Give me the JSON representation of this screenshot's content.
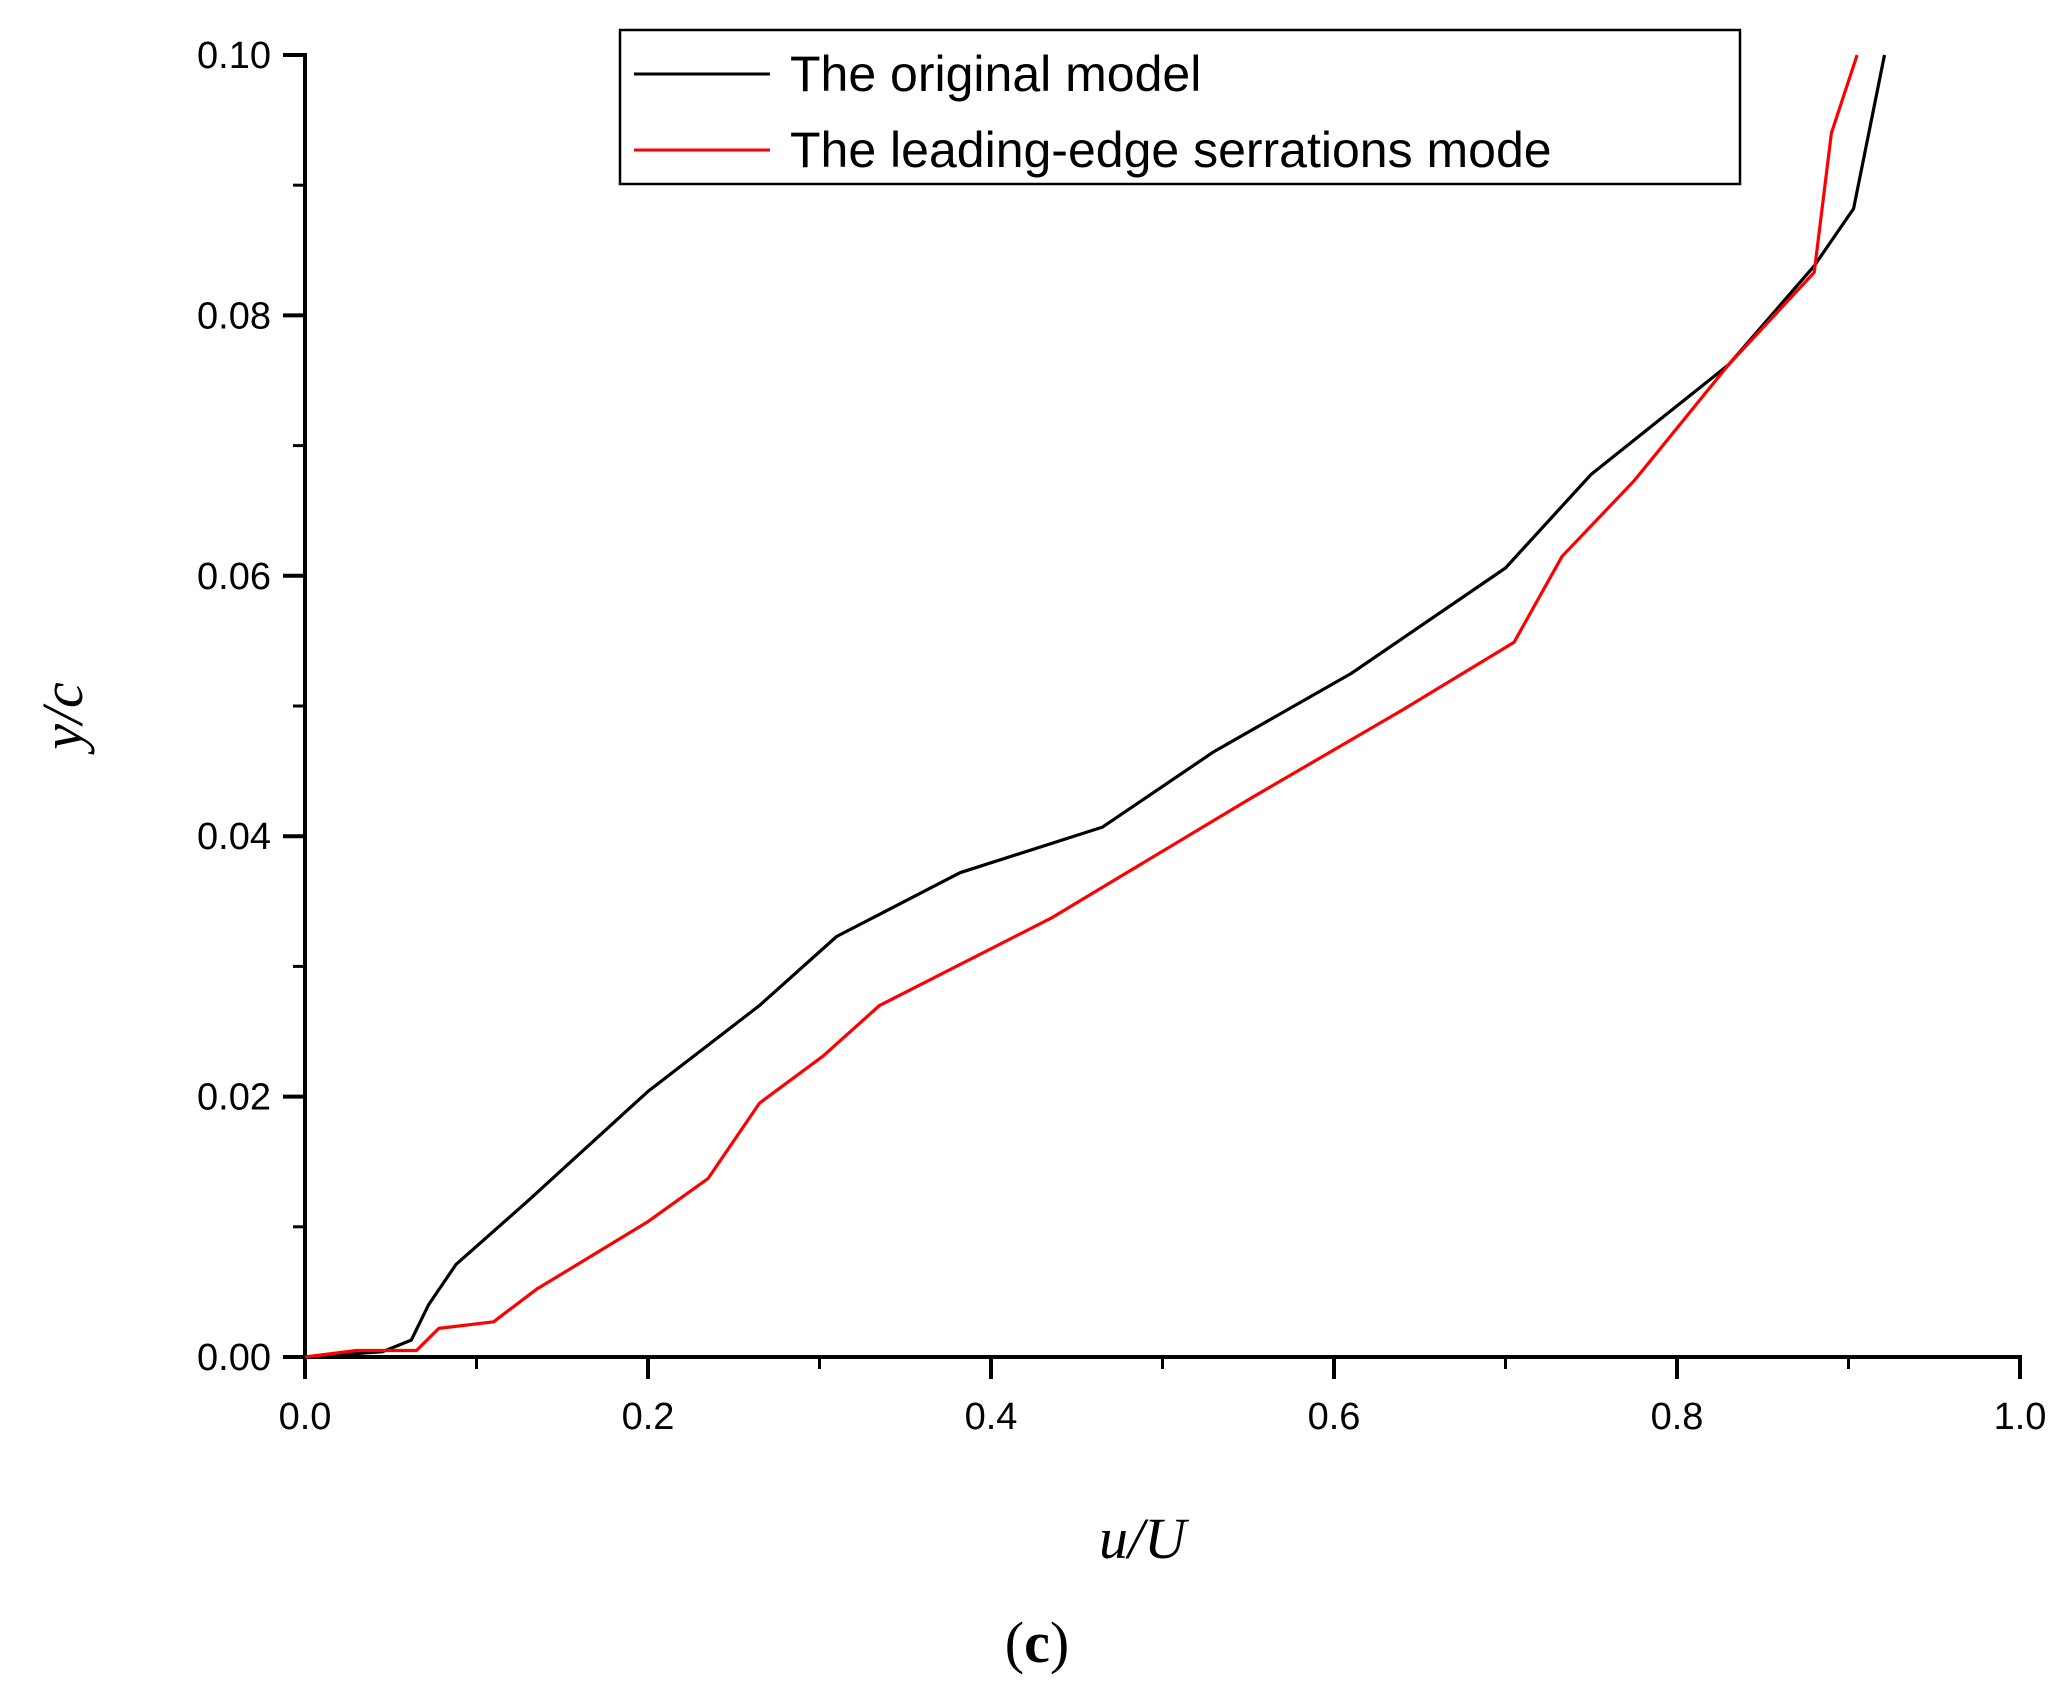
{
  "chart_data": {
    "type": "line",
    "xlabel": "u/U",
    "ylabel": "y/c",
    "caption": {
      "open": "(",
      "letter": "c",
      "close": ")"
    },
    "xlim": [
      0.0,
      1.0
    ],
    "ylim": [
      0.0,
      0.1
    ],
    "xticks": [
      "0.0",
      "0.2",
      "0.4",
      "0.6",
      "0.8",
      "1.0"
    ],
    "yticks": [
      "0.00",
      "0.02",
      "0.04",
      "0.06",
      "0.08",
      "0.10"
    ],
    "legend_position": "top-right",
    "grid": false,
    "series": [
      {
        "name": "The original model",
        "color": "#000000",
        "points": [
          [
            0.0,
            0.0
          ],
          [
            0.045,
            0.0004
          ],
          [
            0.062,
            0.0013
          ],
          [
            0.072,
            0.004
          ],
          [
            0.088,
            0.0071
          ],
          [
            0.13,
            0.012
          ],
          [
            0.165,
            0.0162
          ],
          [
            0.2,
            0.0204
          ],
          [
            0.265,
            0.027
          ],
          [
            0.31,
            0.0323
          ],
          [
            0.382,
            0.0372
          ],
          [
            0.465,
            0.0407
          ],
          [
            0.53,
            0.0465
          ],
          [
            0.61,
            0.0525
          ],
          [
            0.7,
            0.0606
          ],
          [
            0.75,
            0.0678
          ],
          [
            0.83,
            0.0762
          ],
          [
            0.88,
            0.0838
          ],
          [
            0.903,
            0.0882
          ],
          [
            0.921,
            0.1
          ]
        ]
      },
      {
        "name": "The leading-edge serrations mode",
        "color": "#ff0000",
        "points": [
          [
            0.0,
            0.0
          ],
          [
            0.03,
            0.0005
          ],
          [
            0.065,
            0.0005
          ],
          [
            0.078,
            0.0022
          ],
          [
            0.11,
            0.0027
          ],
          [
            0.135,
            0.0052
          ],
          [
            0.2,
            0.0104
          ],
          [
            0.235,
            0.0137
          ],
          [
            0.265,
            0.0195
          ],
          [
            0.302,
            0.0231
          ],
          [
            0.335,
            0.027
          ],
          [
            0.435,
            0.0337
          ],
          [
            0.55,
            0.0428
          ],
          [
            0.64,
            0.0497
          ],
          [
            0.705,
            0.0549
          ],
          [
            0.733,
            0.0615
          ],
          [
            0.775,
            0.0673
          ],
          [
            0.83,
            0.0762
          ],
          [
            0.88,
            0.0833
          ],
          [
            0.89,
            0.094
          ],
          [
            0.905,
            0.1
          ]
        ]
      }
    ]
  }
}
